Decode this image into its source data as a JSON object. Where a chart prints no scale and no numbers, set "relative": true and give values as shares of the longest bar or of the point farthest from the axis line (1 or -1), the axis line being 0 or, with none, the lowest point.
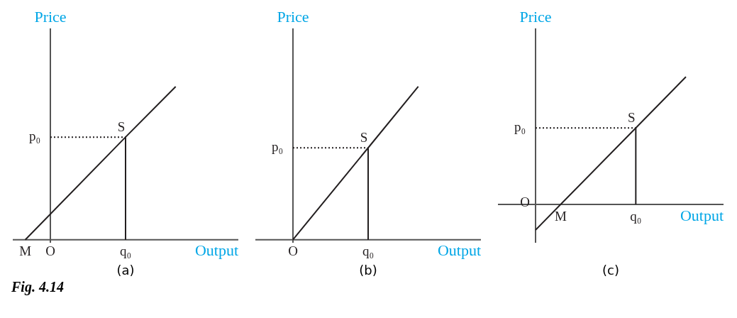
{
  "chart_data": [
    {
      "type": "line",
      "relative": true,
      "xlabel": "Output",
      "ylabel": "Price",
      "marker": "none",
      "categories": [
        "M",
        "O",
        null,
        null,
        "q₀",
        null,
        null,
        null,
        null
      ],
      "series": [
        {
          "color": "#231f20",
          "values": [
            0,
            null,
            null,
            null,
            0.67,
            null,
            1,
            null,
            null
          ]
        }
      ],
      "ref_lines": [
        {
          "axis": "y",
          "value": 0.67,
          "label": "p₀",
          "line_style": "dotted",
          "color": "#231f20"
        }
      ],
      "annotations": [
        "(a)",
        "Fig. 4.14",
        {
          "text": "S",
          "x": "q₀",
          "y": 0.67
        }
      ]
    },
    {
      "type": "line",
      "relative": true,
      "xlabel": "Output",
      "ylabel": "Price",
      "marker": "none",
      "categories": [
        null,
        "O",
        null,
        null,
        "q₀",
        null,
        null,
        null,
        null
      ],
      "series": [
        {
          "color": "#231f20",
          "values": [
            null,
            0,
            null,
            null,
            0.6,
            null,
            1,
            null,
            null
          ]
        }
      ],
      "ref_lines": [
        {
          "axis": "y",
          "value": 0.6,
          "label": "p₀",
          "line_style": "dotted",
          "color": "#231f20"
        }
      ],
      "annotations": [
        "(b)",
        {
          "text": "S",
          "x": "q₀",
          "y": 0.6
        }
      ]
    },
    {
      "type": "line",
      "relative": true,
      "xlabel": "Output",
      "ylabel": "Price",
      "marker": "none",
      "categories": [
        null,
        "O",
        "M",
        null,
        null,
        "q₀",
        null,
        null,
        null
      ],
      "series": [
        {
          "color": "#231f20",
          "values": [
            null,
            -0.2,
            0,
            null,
            null,
            0.6,
            null,
            1,
            null
          ]
        }
      ],
      "ref_lines": [
        {
          "axis": "y",
          "value": 0.6,
          "label": "p₀",
          "line_style": "dotted",
          "color": "#231f20"
        }
      ],
      "annotations": [
        "(c)",
        {
          "text": "S",
          "x": "q₀",
          "y": 0.6
        }
      ]
    }
  ]
}
